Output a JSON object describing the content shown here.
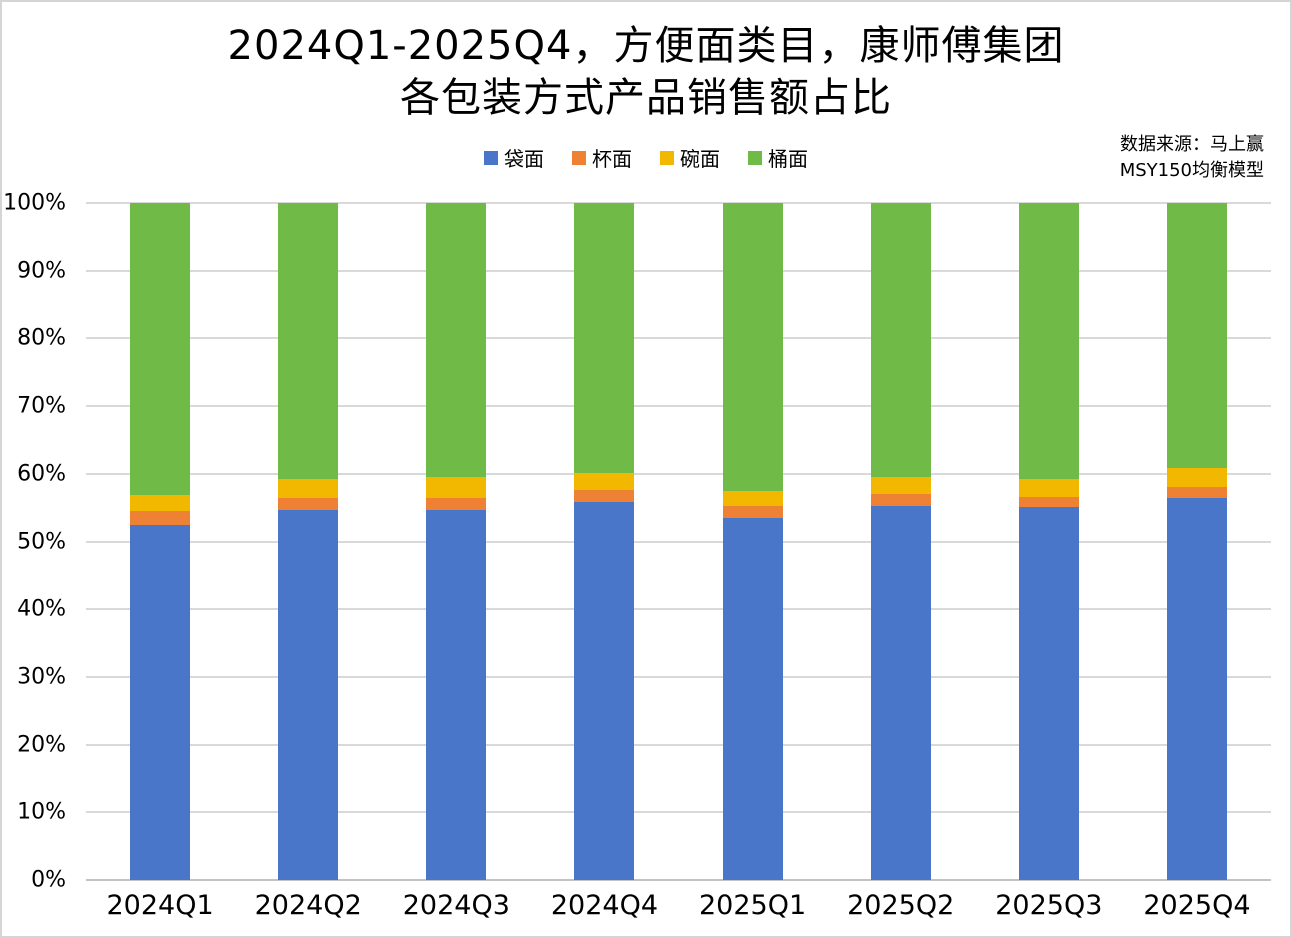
{
  "header": {
    "title_line1": "2024Q1-2025Q4，方便面类目，康师傅集团",
    "title_line2": "各包装方式产品销售额占比",
    "source_line1": "数据来源：马上赢",
    "source_line2": "MSY150均衡模型"
  },
  "chart_data": {
    "type": "bar",
    "variant": "stacked-100-percent",
    "title": "2024Q1-2025Q4，方便面类目，康师傅集团 各包装方式产品销售额占比",
    "categories": [
      "2024Q1",
      "2024Q2",
      "2024Q3",
      "2024Q4",
      "2025Q1",
      "2025Q2",
      "2025Q3",
      "2025Q4"
    ],
    "series": [
      {
        "name": "袋面",
        "key": "bag-noodles",
        "color": "#4a76c9",
        "values": [
          52.5,
          54.6,
          54.6,
          55.8,
          53.5,
          55.3,
          55.1,
          56.5
        ]
      },
      {
        "name": "杯面",
        "key": "cup-noodles",
        "color": "#ee8133",
        "values": [
          2.0,
          1.9,
          1.9,
          1.8,
          1.7,
          1.7,
          1.5,
          1.5
        ]
      },
      {
        "name": "碗面",
        "key": "bowl-noodles",
        "color": "#f2b800",
        "values": [
          2.4,
          2.8,
          3.0,
          2.5,
          2.2,
          2.5,
          2.6,
          2.8
        ]
      },
      {
        "name": "桶面",
        "key": "bucket-noodles",
        "color": "#70bb47",
        "values": [
          43.1,
          40.7,
          40.5,
          39.9,
          42.6,
          40.5,
          40.8,
          39.2
        ]
      }
    ],
    "xlabel": "",
    "ylabel": "",
    "unit": "%",
    "ylim": [
      0,
      100
    ],
    "ytick_values": [
      0,
      10,
      20,
      30,
      40,
      50,
      60,
      70,
      80,
      90,
      100
    ],
    "yticks": [
      "0%",
      "10%",
      "20%",
      "30%",
      "40%",
      "50%",
      "60%",
      "70%",
      "80%",
      "90%",
      "100%"
    ],
    "grid": true,
    "legend_position": "top"
  },
  "colors": {
    "background": "#ffffff",
    "page_border": "#d5d5d5",
    "gridline": "#d9d9d9",
    "axis_line": "#c3c3c3",
    "text": "#000000"
  }
}
